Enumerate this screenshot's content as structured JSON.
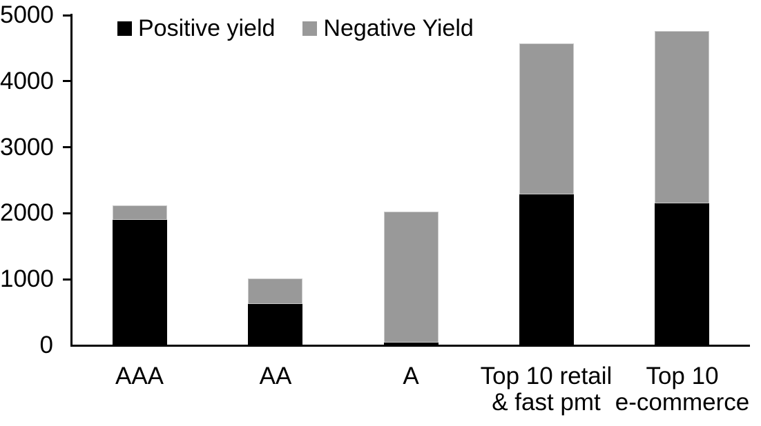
{
  "chart_data": {
    "type": "bar",
    "stacked": true,
    "title": "",
    "xlabel": "",
    "ylabel": "",
    "categories": [
      "AAA",
      "AA",
      "A",
      "Top 10 retail\n& fast pmt",
      "Top 10\ne-commerce"
    ],
    "series": [
      {
        "name": "Positive yield",
        "color": "#000000",
        "values": [
          1895,
          630,
          45,
          2285,
          2150
        ]
      },
      {
        "name": "Negative Yield",
        "color": "#999999",
        "values": [
          225,
          380,
          1980,
          2285,
          2610
        ]
      }
    ],
    "totals": [
      2120,
      1010,
      2025,
      4570,
      4760
    ],
    "ylim": [
      0,
      5000
    ],
    "yticks": [
      0,
      1000,
      2000,
      3000,
      4000,
      5000
    ],
    "grid": false,
    "legend_position": "top"
  },
  "colors": {
    "positive": "#000000",
    "negative": "#999999",
    "axis": "#000000",
    "background": "#ffffff"
  }
}
